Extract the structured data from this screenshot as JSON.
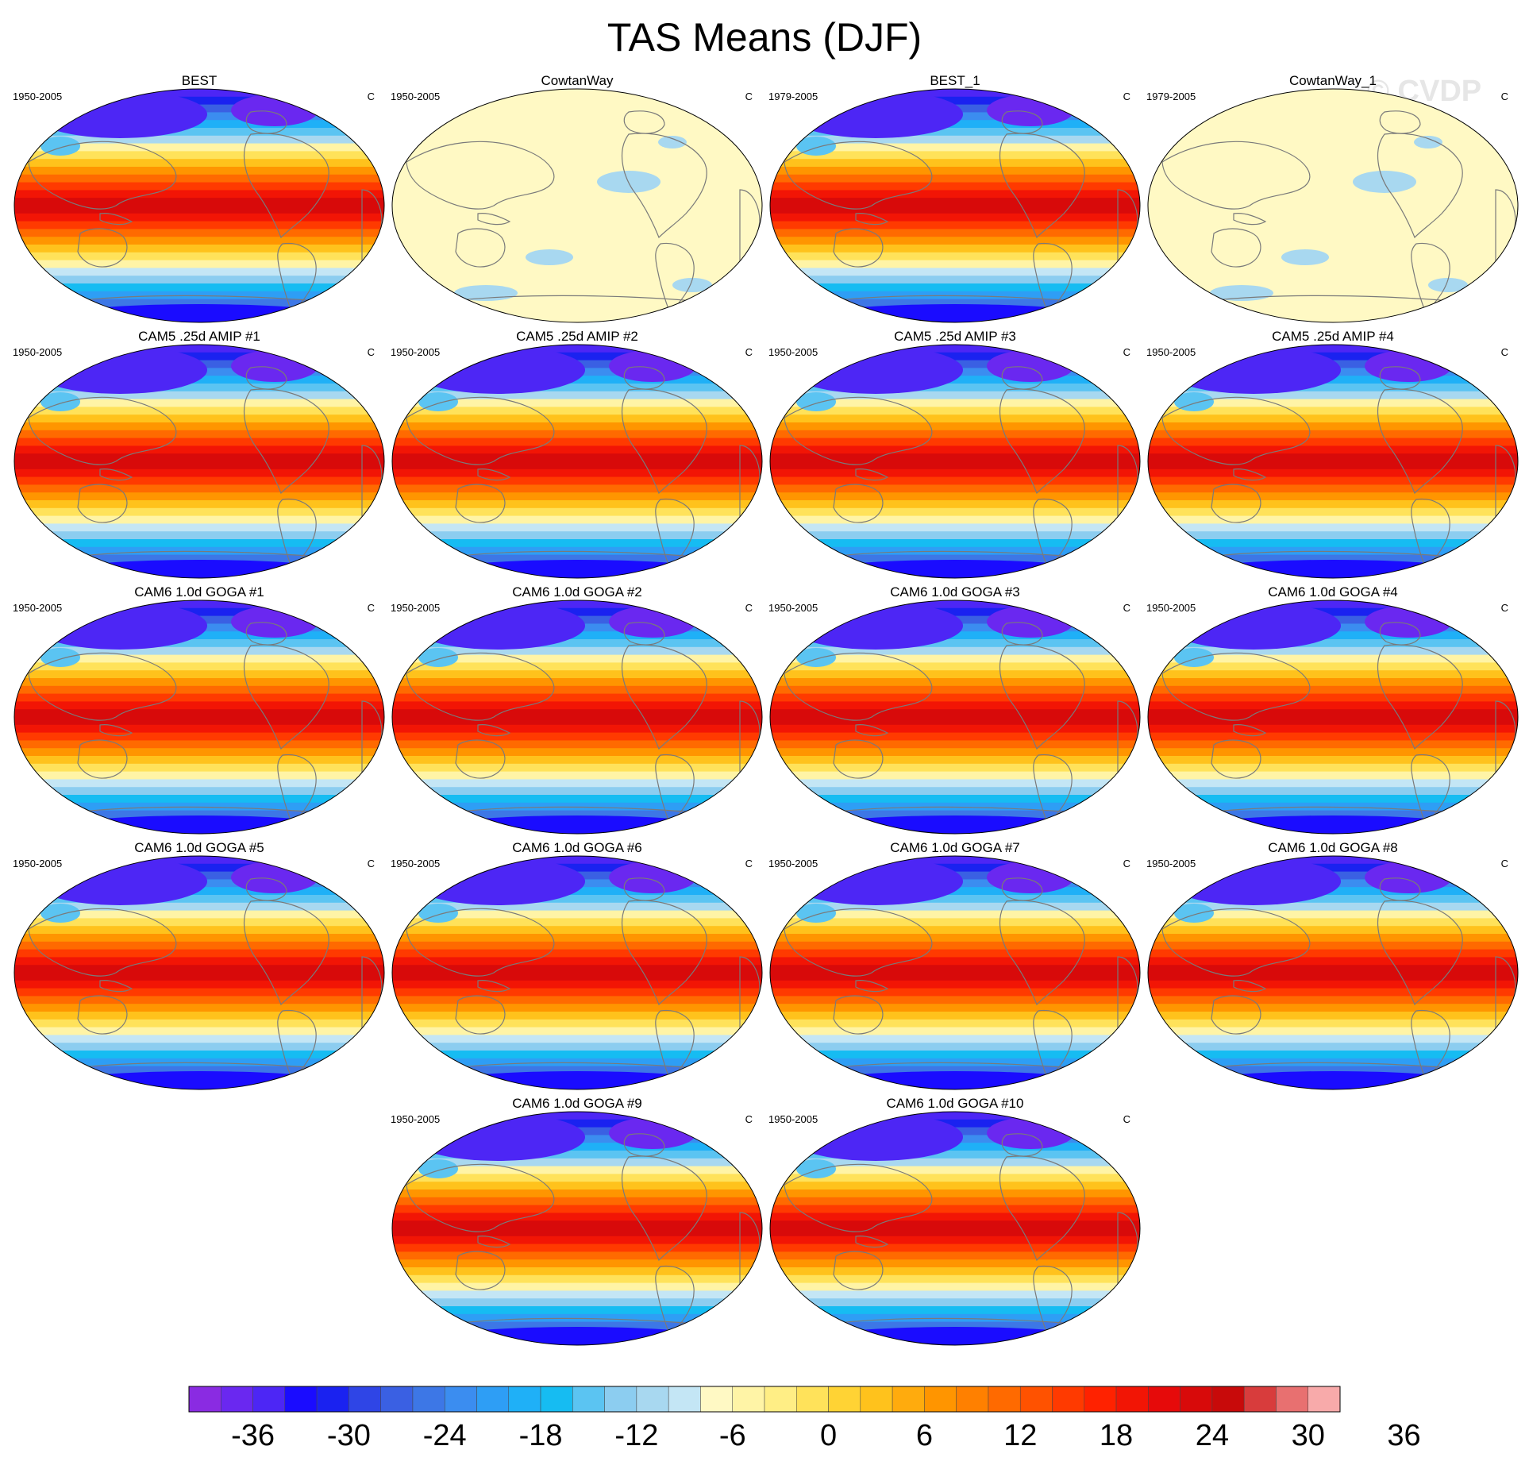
{
  "title": "TAS Means (DJF)",
  "watermark": "© CVDP",
  "colors": {
    "land_outline": "#7a7a7a",
    "palette": [
      "#8a2be2",
      "#6a28f0",
      "#4d26f5",
      "#1a0cff",
      "#1a22f0",
      "#2f45e6",
      "#3a60e3",
      "#3d77e6",
      "#3b8df0",
      "#2e9ef5",
      "#1fb0f7",
      "#16bcf2",
      "#5bc4f2",
      "#8ccdf0",
      "#a8d8f0",
      "#c4e6f5",
      "#fff9c4",
      "#fff4a6",
      "#ffee85",
      "#ffe25a",
      "#ffd334",
      "#ffc21c",
      "#ffab0d",
      "#ff9500",
      "#ff8000",
      "#ff6a00",
      "#ff5200",
      "#ff3a00",
      "#ff2200",
      "#f21505",
      "#e60a0a",
      "#d80a0a",
      "#c80a0a",
      "#d83c3c",
      "#e87070",
      "#f8aaaa"
    ]
  },
  "colorbar": {
    "tick_labels": [
      "-36",
      "-30",
      "-24",
      "-18",
      "-12",
      "-6",
      "0",
      "6",
      "12",
      "18",
      "24",
      "30",
      "36"
    ]
  },
  "panels": [
    {
      "title": "BEST",
      "period": "1950-2005",
      "unit": "C",
      "style": "obs"
    },
    {
      "title": "CowtanWay",
      "period": "1950-2005",
      "unit": "C",
      "style": "flat"
    },
    {
      "title": "BEST_1",
      "period": "1979-2005",
      "unit": "C",
      "style": "obs"
    },
    {
      "title": "CowtanWay_1",
      "period": "1979-2005",
      "unit": "C",
      "style": "flat"
    },
    {
      "title": "CAM5 .25d AMIP #1",
      "period": "1950-2005",
      "unit": "C",
      "style": "model"
    },
    {
      "title": "CAM5 .25d AMIP #2",
      "period": "1950-2005",
      "unit": "C",
      "style": "model"
    },
    {
      "title": "CAM5 .25d AMIP #3",
      "period": "1950-2005",
      "unit": "C",
      "style": "model"
    },
    {
      "title": "CAM5 .25d AMIP #4",
      "period": "1950-2005",
      "unit": "C",
      "style": "model"
    },
    {
      "title": "CAM6 1.0d GOGA #1",
      "period": "1950-2005",
      "unit": "C",
      "style": "model"
    },
    {
      "title": "CAM6 1.0d GOGA #2",
      "period": "1950-2005",
      "unit": "C",
      "style": "model"
    },
    {
      "title": "CAM6 1.0d GOGA #3",
      "period": "1950-2005",
      "unit": "C",
      "style": "model"
    },
    {
      "title": "CAM6 1.0d GOGA #4",
      "period": "1950-2005",
      "unit": "C",
      "style": "model"
    },
    {
      "title": "CAM6 1.0d GOGA #5",
      "period": "1950-2005",
      "unit": "C",
      "style": "model"
    },
    {
      "title": "CAM6 1.0d GOGA #6",
      "period": "1950-2005",
      "unit": "C",
      "style": "model"
    },
    {
      "title": "CAM6 1.0d GOGA #7",
      "period": "1950-2005",
      "unit": "C",
      "style": "model"
    },
    {
      "title": "CAM6 1.0d GOGA #8",
      "period": "1950-2005",
      "unit": "C",
      "style": "model"
    },
    {
      "title": "CAM6 1.0d GOGA #9",
      "period": "1950-2005",
      "unit": "C",
      "style": "model"
    },
    {
      "title": "CAM6 1.0d GOGA #10",
      "period": "1950-2005",
      "unit": "C",
      "style": "model"
    }
  ]
}
